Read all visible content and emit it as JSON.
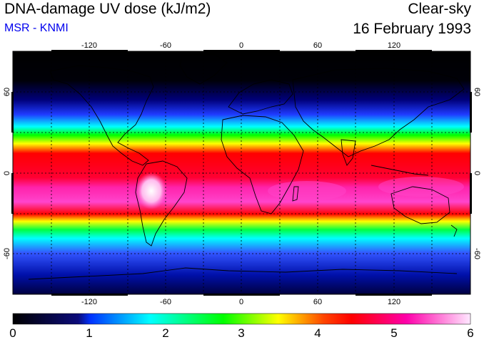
{
  "header": {
    "title": "DNA-damage UV dose (kJ/m2)",
    "subtitle": "MSR - KNMI",
    "condition": "Clear-sky",
    "date": "16 February 1993"
  },
  "map": {
    "projection": "equirectangular",
    "lon_range": [
      -180,
      180
    ],
    "lat_range": [
      -90,
      90
    ],
    "lon_ticks": [
      "-120",
      "-60",
      "0",
      "60",
      "120"
    ],
    "lat_ticks": [
      "60",
      "0",
      "-60"
    ],
    "graticule": "dashed, every 30 degrees",
    "colors": {
      "background": "#000000",
      "coastline": "#000000",
      "graticule": "#000000"
    }
  },
  "colorbar": {
    "min": 0,
    "max": 6,
    "labels": [
      "0",
      "1",
      "2",
      "3",
      "4",
      "5",
      "6"
    ],
    "stops": [
      "#000000",
      "#0033ff",
      "#00ffff",
      "#00ff00",
      "#ffff00",
      "#ff0000",
      "#ff00aa",
      "#ffffff"
    ]
  }
}
